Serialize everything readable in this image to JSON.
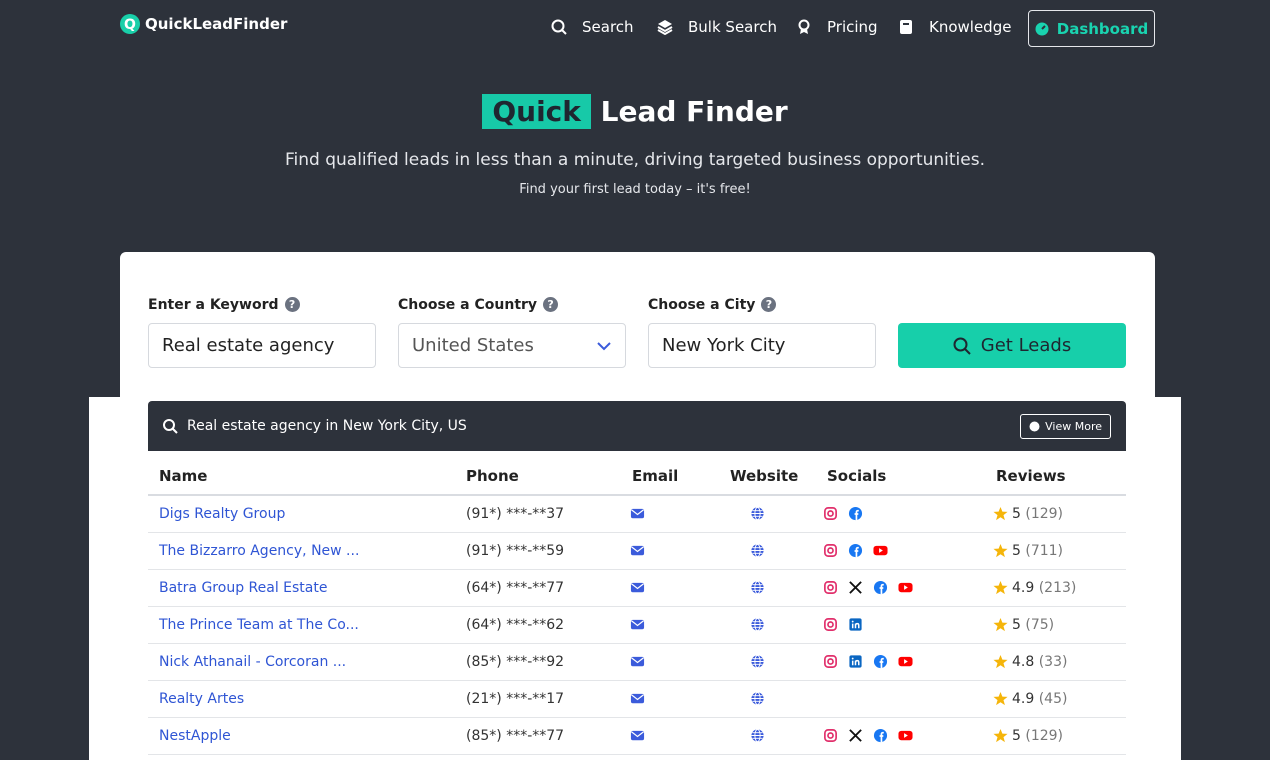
{
  "nav": {
    "logo": "QuickLeadFinder",
    "items": [
      "Search",
      "Bulk Search",
      "Pricing",
      "Knowledge"
    ],
    "dashboard": "Dashboard"
  },
  "hero": {
    "title_highlight": "Quick",
    "title_rest": "Lead Finder",
    "subtitle": "Find qualified leads in less than a minute, driving targeted business opportunities.",
    "note": "Find your first lead today – it's free!"
  },
  "form": {
    "keyword_label": "Enter a Keyword",
    "keyword_value": "Real estate agency",
    "country_label": "Choose a Country",
    "country_value": "United States",
    "city_label": "Choose a City",
    "city_value": "New York City",
    "button": "Get Leads"
  },
  "results": {
    "heading": "Real estate agency in New York City, US",
    "view_more": "View More",
    "columns": [
      "Name",
      "Phone",
      "Email",
      "Website",
      "Socials",
      "Reviews"
    ],
    "rows": [
      {
        "name": "Digs Realty Group",
        "phone": "(91*) ***-**37",
        "socials": [
          "instagram",
          "facebook"
        ],
        "rating": "5",
        "count": "(129)"
      },
      {
        "name": "The Bizzarro Agency, New ...",
        "phone": "(91*) ***-**59",
        "socials": [
          "instagram",
          "facebook",
          "youtube"
        ],
        "rating": "5",
        "count": "(711)"
      },
      {
        "name": "Batra Group Real Estate",
        "phone": "(64*) ***-**77",
        "socials": [
          "instagram",
          "x",
          "facebook",
          "youtube"
        ],
        "rating": "4.9",
        "count": "(213)"
      },
      {
        "name": "The Prince Team at The Co...",
        "phone": "(64*) ***-**62",
        "socials": [
          "instagram",
          "linkedin"
        ],
        "rating": "5",
        "count": "(75)"
      },
      {
        "name": "Nick Athanail - Corcoran ...",
        "phone": "(85*) ***-**92",
        "socials": [
          "instagram",
          "linkedin",
          "facebook",
          "youtube"
        ],
        "rating": "4.8",
        "count": "(33)"
      },
      {
        "name": "Realty Artes",
        "phone": "(21*) ***-**17",
        "socials": [],
        "rating": "4.9",
        "count": "(45)"
      },
      {
        "name": "NestApple",
        "phone": "(85*) ***-**77",
        "socials": [
          "instagram",
          "x",
          "facebook",
          "youtube"
        ],
        "rating": "5",
        "count": "(129)"
      }
    ]
  }
}
